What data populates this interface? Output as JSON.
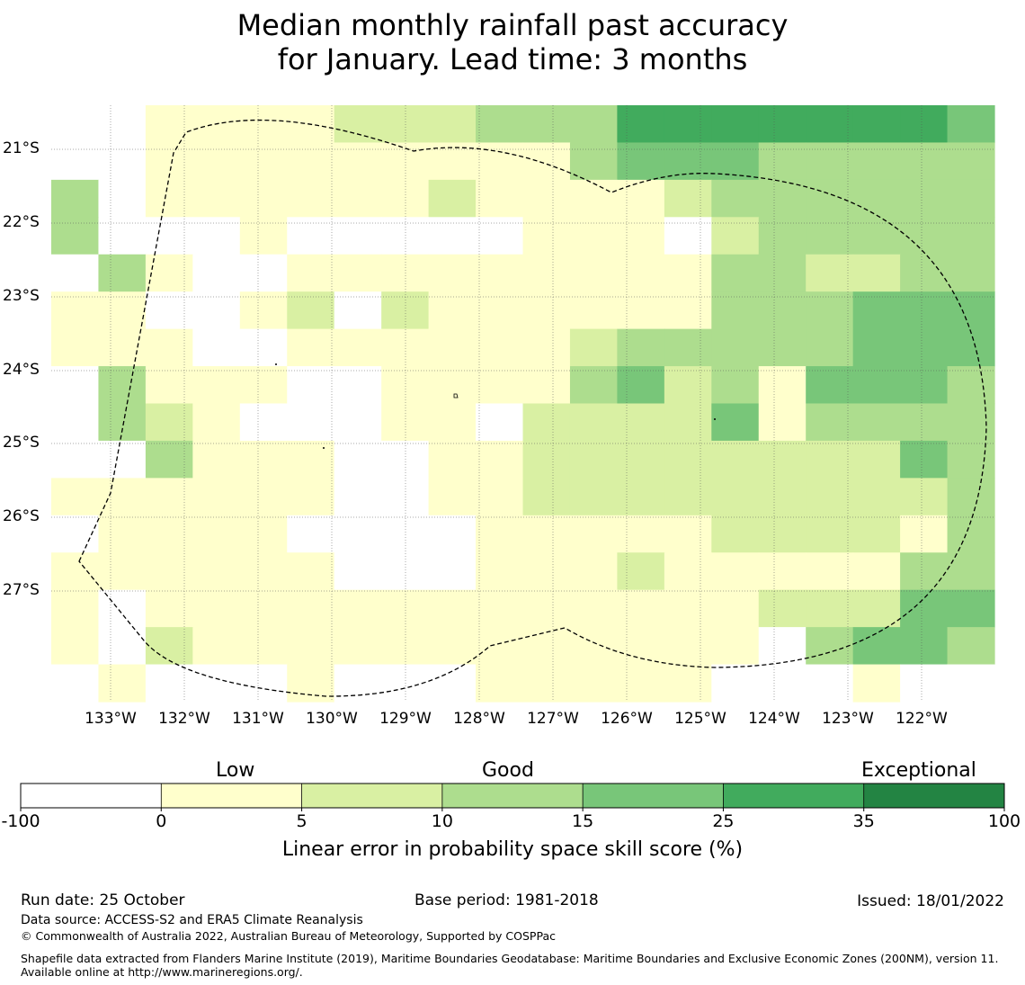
{
  "title": {
    "line1": "Median monthly rainfall past accuracy",
    "line2": "for January. Lead time: 3 months"
  },
  "map": {
    "lon_labels": [
      "133°W",
      "132°W",
      "131°W",
      "130°W",
      "129°W",
      "128°W",
      "127°W",
      "126°W",
      "125°W",
      "124°W",
      "123°W",
      "122°W"
    ],
    "lat_labels": [
      "21°S",
      "22°S",
      "23°S",
      "24°S",
      "25°S",
      "26°S",
      "27°S"
    ],
    "grid": [
      "00111122233355555554",
      "00111111111344433333",
      "30111111211112333333",
      "30001000001110233333",
      "03100111111111332233",
      "11001202111111333444",
      "11100111111233333444",
      "03111001111342314443",
      "03210001102222413333",
      "00311100112222222243",
      "11111100112222222223",
      "01111000011111222213",
      "11111100011121111133",
      "10111111111111122244",
      "10211111111111103443",
      "01000100011111000100"
    ]
  },
  "legend": {
    "category_labels": [
      "Low",
      "Good",
      "Exceptional"
    ],
    "tick_labels": [
      "-100",
      "0",
      "5",
      "10",
      "15",
      "25",
      "35",
      "100"
    ],
    "colors": [
      "#ffffff",
      "#ffffcc",
      "#d9f0a3",
      "#addd8e",
      "#78c679",
      "#41ab5d",
      "#238443"
    ],
    "axis_label": "Linear error in probability space skill score (%)"
  },
  "footer": {
    "run_date": "Run date: 25 October",
    "base_period": "Base period: 1981-2018",
    "issued": "Issued: 18/01/2022",
    "data_source": "Data source: ACCESS-S2 and ERA5 Climate Reanalysis",
    "copyright": "© Commonwealth of Australia 2022, Australian Bureau of Meteorology, Supported by COSPPac",
    "shapefile": "Shapefile data extracted from Flanders Marine Institute (2019), Maritime Boundaries Geodatabase: Maritime Boundaries and Exclusive Economic Zones (200NM), version 11. Available online at http://www.marineregions.org/."
  }
}
